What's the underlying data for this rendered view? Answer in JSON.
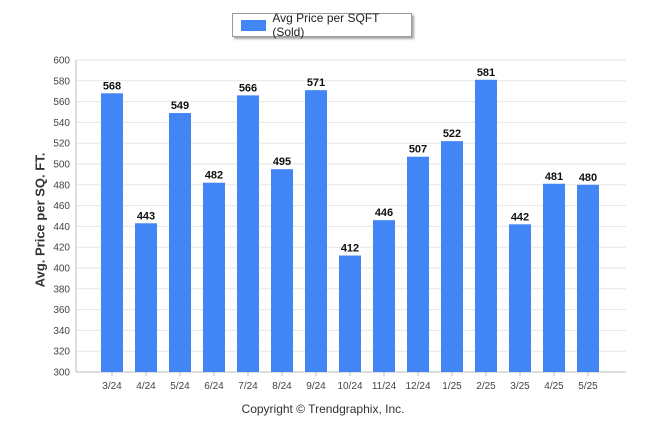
{
  "chart_data": {
    "type": "bar",
    "categories": [
      "3/24",
      "4/24",
      "5/24",
      "6/24",
      "7/24",
      "8/24",
      "9/24",
      "10/24",
      "11/24",
      "12/24",
      "1/25",
      "2/25",
      "3/25",
      "4/25",
      "5/25"
    ],
    "series": [
      {
        "name": "Avg Price per SQFT (Sold)",
        "values": [
          568,
          443,
          549,
          482,
          566,
          495,
          571,
          412,
          446,
          507,
          522,
          581,
          442,
          481,
          480
        ],
        "color": "#4285f4"
      }
    ],
    "ylabel": "Avg. Price per SQ. FT.",
    "xlabel": "",
    "ylim": [
      300,
      600
    ],
    "ytick_step": 20,
    "grid": true,
    "legend_position": "top-center",
    "show_data_labels": true
  },
  "footer": {
    "copyright": "Copyright © Trendgraphix, Inc."
  }
}
